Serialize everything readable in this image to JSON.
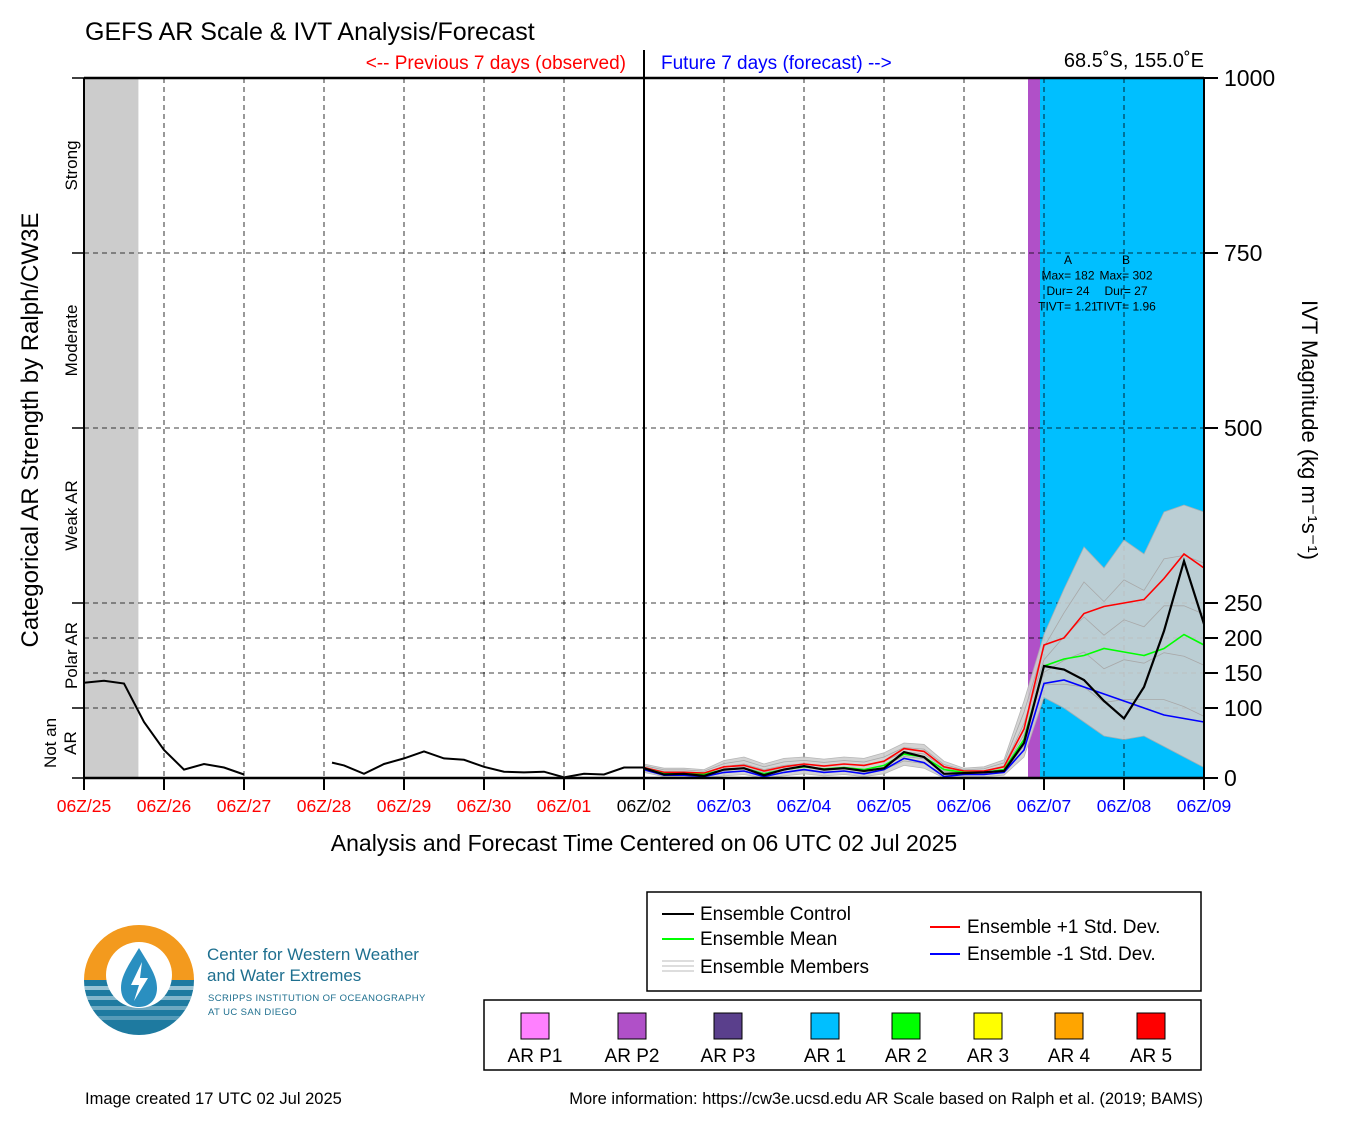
{
  "header": {
    "title": "GEFS AR Scale & IVT Analysis/Forecast",
    "previous_label": "<-- Previous 7 days (observed)",
    "future_label": "Future 7 days (forecast) -->",
    "location": "68.5˚S, 155.0˚E"
  },
  "axes": {
    "left_label": "Categorical AR Strength by Ralph/CW3E",
    "right_label": "IVT Magnitude (kg m⁻¹s⁻¹)",
    "x_label": "Analysis and Forecast Time Centered on 06 UTC 02 Jul 2025",
    "categories": [
      {
        "label": "Strong",
        "lines": [
          "Strong"
        ]
      },
      {
        "label": "Moderate",
        "lines": [
          "Moderate"
        ]
      },
      {
        "label": "Weak AR",
        "lines": [
          "Weak AR"
        ]
      },
      {
        "label": "Polar AR",
        "lines": [
          "Polar AR"
        ]
      },
      {
        "label": "Not an AR",
        "lines": [
          "Not an",
          "AR"
        ]
      }
    ],
    "y_ticks": [
      0,
      100,
      150,
      200,
      250,
      500,
      750,
      1000
    ],
    "x_ticks": [
      {
        "label": "06Z/25",
        "color": "#ff0000"
      },
      {
        "label": "06Z/26",
        "color": "#ff0000"
      },
      {
        "label": "06Z/27",
        "color": "#ff0000"
      },
      {
        "label": "06Z/28",
        "color": "#ff0000"
      },
      {
        "label": "06Z/29",
        "color": "#ff0000"
      },
      {
        "label": "06Z/30",
        "color": "#ff0000"
      },
      {
        "label": "06Z/01",
        "color": "#ff0000"
      },
      {
        "label": "06Z/02",
        "color": "#000000"
      },
      {
        "label": "06Z/03",
        "color": "#0000ff"
      },
      {
        "label": "06Z/04",
        "color": "#0000ff"
      },
      {
        "label": "06Z/05",
        "color": "#0000ff"
      },
      {
        "label": "06Z/06",
        "color": "#0000ff"
      },
      {
        "label": "06Z/07",
        "color": "#0000ff"
      },
      {
        "label": "06Z/08",
        "color": "#0000ff"
      },
      {
        "label": "06Z/09",
        "color": "#0000ff"
      }
    ]
  },
  "chart_data": {
    "type": "line",
    "x_unit": "days from 06Z/25 Jun 2025",
    "xlim": [
      0,
      14
    ],
    "ylim": [
      0,
      1000
    ],
    "grid": true,
    "now_x": 7,
    "missing_shade": {
      "x0": 0,
      "x1": 0.68,
      "color": "#cccccc"
    },
    "ar_events": [
      {
        "id": "A",
        "x0": 11.8,
        "x1": 12.8,
        "color": "#b050c8",
        "label_lines": [
          "A",
          "Max= 182",
          "Dur= 24",
          "TIVT= 1.21"
        ]
      },
      {
        "id": "B",
        "x0": 11.95,
        "x1": 14.0,
        "color": "#00bfff",
        "label_lines": [
          "B",
          "Max= 302",
          "Dur= 27",
          "TIVT= 1.96"
        ]
      }
    ],
    "observed": {
      "name": "Ensemble Control",
      "color": "#000000",
      "segments": [
        [
          [
            0,
            136
          ],
          [
            0.25,
            139
          ],
          [
            0.5,
            135
          ],
          [
            0.75,
            80
          ],
          [
            1,
            40
          ],
          [
            1.25,
            12
          ],
          [
            1.5,
            20
          ],
          [
            1.75,
            15
          ],
          [
            2,
            5
          ]
        ],
        [
          [
            3.1,
            22
          ],
          [
            3.25,
            18
          ],
          [
            3.5,
            6
          ],
          [
            3.75,
            20
          ],
          [
            4,
            28
          ],
          [
            4.25,
            38
          ],
          [
            4.5,
            28
          ],
          [
            4.75,
            26
          ],
          [
            5,
            16
          ],
          [
            5.25,
            9
          ],
          [
            5.5,
            8
          ],
          [
            5.75,
            9
          ],
          [
            6,
            1
          ],
          [
            6.25,
            6
          ],
          [
            6.5,
            5
          ],
          [
            6.75,
            15
          ],
          [
            7,
            15
          ]
        ]
      ]
    },
    "series": [
      {
        "name": "Ensemble Control",
        "color": "#000000",
        "x": [
          7,
          7.25,
          7.5,
          7.75,
          8,
          8.25,
          8.5,
          8.75,
          9,
          9.25,
          9.5,
          9.75,
          10,
          10.25,
          10.5,
          10.75,
          11,
          11.25,
          11.5,
          11.75,
          12,
          12.25,
          12.5,
          12.75,
          13,
          13.25,
          13.5,
          13.75,
          14
        ],
        "values": [
          14,
          5,
          6,
          3,
          12,
          14,
          4,
          12,
          17,
          12,
          14,
          10,
          14,
          37,
          30,
          6,
          7,
          8,
          10,
          50,
          160,
          155,
          140,
          110,
          85,
          130,
          210,
          310,
          220
        ]
      },
      {
        "name": "Ensemble Mean",
        "color": "#00ff00",
        "x": [
          7,
          7.25,
          7.5,
          7.75,
          8,
          8.25,
          8.5,
          8.75,
          9,
          9.25,
          9.5,
          9.75,
          10,
          10.25,
          10.5,
          10.75,
          11,
          11.25,
          11.5,
          11.75,
          12,
          12.25,
          12.5,
          12.75,
          13,
          13.25,
          13.5,
          13.75,
          14
        ],
        "values": [
          14,
          6,
          6,
          5,
          12,
          14,
          6,
          12,
          16,
          13,
          15,
          12,
          18,
          34,
          30,
          12,
          8,
          8,
          12,
          55,
          160,
          170,
          175,
          185,
          180,
          175,
          185,
          205,
          190
        ]
      },
      {
        "name": "Ensemble +1 Std. Dev.",
        "color": "#ff0000",
        "x": [
          7,
          7.25,
          7.5,
          7.75,
          8,
          8.25,
          8.5,
          8.75,
          9,
          9.25,
          9.5,
          9.75,
          10,
          10.25,
          10.5,
          10.75,
          11,
          11.25,
          11.5,
          11.75,
          12,
          12.25,
          12.5,
          12.75,
          13,
          13.25,
          13.5,
          13.75,
          14
        ],
        "values": [
          15,
          8,
          8,
          7,
          16,
          18,
          10,
          16,
          20,
          17,
          20,
          18,
          24,
          42,
          38,
          16,
          10,
          10,
          16,
          70,
          190,
          200,
          235,
          245,
          250,
          255,
          285,
          320,
          300
        ]
      },
      {
        "name": "Ensemble -1 Std. Dev.",
        "color": "#0000ff",
        "x": [
          7,
          7.25,
          7.5,
          7.75,
          8,
          8.25,
          8.5,
          8.75,
          9,
          9.25,
          9.5,
          9.75,
          10,
          10.25,
          10.5,
          10.75,
          11,
          11.25,
          11.5,
          11.75,
          12,
          12.25,
          12.5,
          12.75,
          13,
          13.25,
          13.5,
          13.75,
          14
        ],
        "values": [
          12,
          4,
          4,
          2,
          8,
          10,
          2,
          8,
          12,
          8,
          10,
          6,
          12,
          28,
          22,
          2,
          5,
          5,
          8,
          40,
          135,
          140,
          130,
          120,
          110,
          100,
          90,
          85,
          80
        ]
      }
    ],
    "ensemble_spread": {
      "name": "Ensemble Members",
      "x": [
        7,
        7.25,
        7.5,
        7.75,
        8,
        8.25,
        8.5,
        8.75,
        9,
        9.25,
        9.5,
        9.75,
        10,
        10.25,
        10.5,
        10.75,
        11,
        11.25,
        11.5,
        11.75,
        12,
        12.25,
        12.5,
        12.75,
        13,
        13.25,
        13.5,
        13.75,
        14
      ],
      "upper": [
        20,
        14,
        14,
        12,
        25,
        30,
        20,
        28,
        30,
        27,
        30,
        28,
        36,
        50,
        48,
        24,
        14,
        16,
        26,
        110,
        205,
        270,
        330,
        300,
        340,
        320,
        380,
        390,
        380
      ],
      "lower": [
        8,
        2,
        2,
        0,
        3,
        5,
        0,
        3,
        6,
        3,
        5,
        2,
        6,
        18,
        14,
        0,
        2,
        2,
        4,
        30,
        115,
        100,
        80,
        60,
        55,
        60,
        45,
        30,
        15
      ]
    },
    "legend": {
      "placement": "bottom-right",
      "entries": [
        {
          "label": "Ensemble Control",
          "color": "#000000"
        },
        {
          "label": "Ensemble Mean",
          "color": "#00ff00"
        },
        {
          "label": "Ensemble Members",
          "color": "#bbbbbb"
        },
        {
          "label": "Ensemble +1 Std. Dev.",
          "color": "#ff0000"
        },
        {
          "label": "Ensemble -1 Std. Dev.",
          "color": "#0000ff"
        }
      ]
    },
    "ar_scale_legend": [
      {
        "label": "AR P1",
        "color": "#ff80ff"
      },
      {
        "label": "AR P2",
        "color": "#b050c8"
      },
      {
        "label": "AR P3",
        "color": "#5a3f8c"
      },
      {
        "label": "AR 1",
        "color": "#00bfff"
      },
      {
        "label": "AR 2",
        "color": "#00ff00"
      },
      {
        "label": "AR 3",
        "color": "#ffff00"
      },
      {
        "label": "AR 4",
        "color": "#ffa500"
      },
      {
        "label": "AR 5",
        "color": "#ff0000"
      }
    ]
  },
  "logo": {
    "line1": "Center for Western Weather",
    "line2": "and Water Extremes",
    "line3": "SCRIPPS INSTITUTION OF OCEANOGRAPHY",
    "line4": "AT UC SAN DIEGO"
  },
  "footer": {
    "created": "Image created 17 UTC 02 Jul 2025",
    "info": "More information: https://cw3e.ucsd.edu AR Scale based on Ralph et al. (2019; BAMS)"
  }
}
